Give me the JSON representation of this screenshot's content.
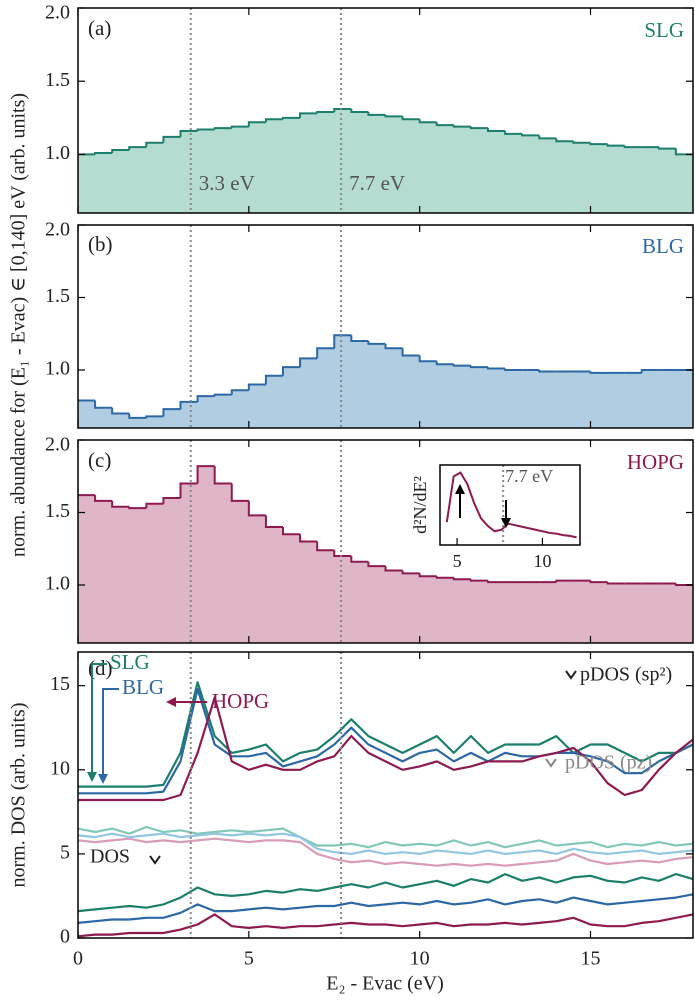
{
  "chart_data": [
    {
      "type": "histogram",
      "panel_label": "(a)",
      "name": "SLG",
      "color": "#1b7f6c",
      "fill": "#b5dcd1",
      "bins": [
        0,
        0.5,
        1,
        1.5,
        2,
        2.5,
        3,
        3.5,
        4,
        4.5,
        5,
        5.5,
        6,
        6.5,
        7,
        7.5,
        8,
        8.5,
        9,
        9.5,
        10,
        10.5,
        11,
        11.5,
        12,
        12.5,
        13,
        13.5,
        14,
        14.5,
        15,
        15.5,
        16,
        16.5,
        17,
        17.5,
        18
      ],
      "values": [
        1.0,
        1.01,
        1.03,
        1.05,
        1.08,
        1.12,
        1.16,
        1.17,
        1.18,
        1.19,
        1.22,
        1.24,
        1.25,
        1.28,
        1.29,
        1.31,
        1.29,
        1.27,
        1.26,
        1.24,
        1.22,
        1.2,
        1.19,
        1.18,
        1.16,
        1.14,
        1.13,
        1.11,
        1.09,
        1.08,
        1.07,
        1.06,
        1.05,
        1.05,
        1.04,
        1.0
      ],
      "xlim": [
        0,
        18
      ],
      "xticks": [
        0,
        5,
        10,
        15
      ],
      "ylim": [
        0.6,
        2.0
      ],
      "yticks": [
        {
          "value": 1,
          "label": "1.0"
        },
        {
          "value": 1.5,
          "label": "1.5"
        },
        {
          "value": 2,
          "label": "2.0"
        }
      ],
      "vlines": [
        {
          "value": 3.3,
          "label": "3.3 eV"
        },
        {
          "value": 7.7,
          "label": "7.7 eV"
        }
      ]
    },
    {
      "type": "histogram",
      "panel_label": "(b)",
      "name": "BLG",
      "color": "#2d68a6",
      "fill": "#b0cde2",
      "ylabel": "norm. abundance for (E₁ - Evac) ∈ [0,140] eV (arb. units)",
      "bins": [
        0,
        0.5,
        1,
        1.5,
        2,
        2.5,
        3,
        3.5,
        4,
        4.5,
        5,
        5.5,
        6,
        6.5,
        7,
        7.5,
        8,
        8.5,
        9,
        9.5,
        10,
        10.5,
        11,
        11.5,
        12,
        12.5,
        13,
        13.5,
        14,
        14.5,
        15,
        15.5,
        16,
        16.5,
        17,
        17.5,
        18
      ],
      "values": [
        0.79,
        0.74,
        0.7,
        0.67,
        0.68,
        0.73,
        0.78,
        0.82,
        0.83,
        0.86,
        0.9,
        0.96,
        1.02,
        1.08,
        1.15,
        1.24,
        1.2,
        1.18,
        1.15,
        1.1,
        1.06,
        1.04,
        1.03,
        1.02,
        1.01,
        1.0,
        1.0,
        0.99,
        0.99,
        0.99,
        0.98,
        0.98,
        0.98,
        1.0,
        1.0,
        1.0
      ],
      "xlim": [
        0,
        18
      ],
      "xticks": [
        0,
        5,
        10,
        15
      ],
      "ylim": [
        0.6,
        2.0
      ],
      "yticks": [
        {
          "value": 1,
          "label": "1.0"
        },
        {
          "value": 1.5,
          "label": "1.5"
        },
        {
          "value": 2,
          "label": "2.0"
        }
      ],
      "vlines": [
        3.3,
        7.7
      ]
    },
    {
      "type": "histogram",
      "panel_label": "(c)",
      "name": "HOPG",
      "color": "#8e1a50",
      "fill": "#dfb5c8",
      "bins": [
        0,
        0.5,
        1,
        1.5,
        2,
        2.5,
        3,
        3.5,
        4,
        4.5,
        5,
        5.5,
        6,
        6.5,
        7,
        7.5,
        8,
        8.5,
        9,
        9.5,
        10,
        10.5,
        11,
        11.5,
        12,
        12.5,
        13,
        13.5,
        14,
        14.5,
        15,
        15.5,
        16,
        16.5,
        17,
        17.5,
        18
      ],
      "values": [
        1.62,
        1.58,
        1.54,
        1.53,
        1.56,
        1.6,
        1.7,
        1.82,
        1.7,
        1.58,
        1.48,
        1.4,
        1.35,
        1.3,
        1.24,
        1.2,
        1.16,
        1.13,
        1.1,
        1.08,
        1.06,
        1.05,
        1.04,
        1.03,
        1.02,
        1.02,
        1.02,
        1.02,
        1.03,
        1.03,
        1.02,
        1.01,
        1.01,
        1.01,
        1.01,
        1.0
      ],
      "xlim": [
        0,
        18
      ],
      "xticks": [
        0,
        5,
        10,
        15
      ],
      "ylim": [
        0.6,
        2.0
      ],
      "yticks": [
        {
          "value": 1,
          "label": "1.0"
        },
        {
          "value": 1.5,
          "label": "1.5"
        },
        {
          "value": 2,
          "label": "2.0"
        }
      ],
      "vlines": [
        3.3,
        7.7
      ]
    },
    {
      "type": "inset",
      "ylabel": "d²N/dE²",
      "color": "#8e1a50",
      "x": [
        4.4,
        4.8,
        5.2,
        5.6,
        6.0,
        6.4,
        6.8,
        7.2,
        7.6,
        8.0,
        8.4,
        8.8,
        9.2,
        9.6,
        10.0,
        10.4,
        10.8,
        11.2,
        11.6,
        12.0
      ],
      "values": [
        0.3,
        0.9,
        0.95,
        0.8,
        0.55,
        0.35,
        0.25,
        0.18,
        0.2,
        0.28,
        0.26,
        0.24,
        0.22,
        0.2,
        0.18,
        0.16,
        0.15,
        0.13,
        0.12,
        0.1
      ],
      "xlim": [
        4,
        12.2
      ],
      "xticks": [
        5,
        10
      ],
      "ylim": [
        0,
        1.05
      ],
      "vlines": [
        {
          "value": 7.7,
          "label": "7.7 eV"
        }
      ]
    },
    {
      "type": "line",
      "panel_label": "(d)",
      "xlabel": "E₂ - Evac (eV)",
      "ylabel": "norm. DOS (arb. units)",
      "curve_labels": {
        "sp2": "pDOS (sp²)",
        "pz": "pDOS (pz)",
        "dos": "DOS"
      },
      "xlim": [
        0,
        18
      ],
      "xticks": [
        0,
        5,
        10,
        15
      ],
      "ylim": [
        0,
        17
      ],
      "yticks": [
        0,
        5,
        10,
        15
      ],
      "vlines": [
        3.3,
        7.7
      ],
      "x": [
        0,
        0.5,
        1,
        1.5,
        2,
        2.5,
        3,
        3.5,
        4,
        4.5,
        5,
        5.5,
        6,
        6.5,
        7,
        7.5,
        8,
        8.5,
        9,
        9.5,
        10,
        10.5,
        11,
        11.5,
        12,
        12.5,
        13,
        13.5,
        14,
        14.5,
        15,
        15.5,
        16,
        16.5,
        17,
        17.5,
        18
      ],
      "series": [
        {
          "name": "SLG",
          "color": "#1b7f6c",
          "light_color": "#82c7b7",
          "sp2": [
            9,
            9,
            9,
            9,
            9,
            9.1,
            11,
            15.2,
            12,
            11,
            11.2,
            11.5,
            10.5,
            11,
            11.2,
            12,
            13,
            12,
            11.5,
            11,
            11.5,
            12,
            11,
            12,
            11,
            11.5,
            11.5,
            11.5,
            12,
            11,
            11.5,
            11.5,
            11,
            10.5,
            11,
            11,
            11.5
          ],
          "pz": [
            6.5,
            6.3,
            6.5,
            6.2,
            6.6,
            6.3,
            6.4,
            6.2,
            6.3,
            6.4,
            6.3,
            6.4,
            6.5,
            6.0,
            5.5,
            5.5,
            5.6,
            5.4,
            5.7,
            5.5,
            5.6,
            5.5,
            5.8,
            5.5,
            5.7,
            5.4,
            5.6,
            5.8,
            5.5,
            5.6,
            5.7,
            5.4,
            5.6,
            5.5,
            5.7,
            5.5,
            5.6
          ],
          "dos": [
            1.6,
            1.7,
            1.8,
            1.9,
            1.8,
            2.0,
            2.4,
            3.0,
            2.6,
            2.5,
            2.6,
            2.8,
            2.7,
            2.9,
            2.8,
            3.0,
            3.2,
            3.0,
            3.3,
            3.0,
            3.2,
            3.4,
            3.1,
            3.5,
            3.3,
            3.8,
            3.4,
            3.6,
            3.3,
            3.6,
            3.7,
            3.4,
            3.3,
            3.6,
            3.4,
            3.8,
            3.5
          ]
        },
        {
          "name": "BLG",
          "color": "#2d68a6",
          "light_color": "#92c6e2",
          "sp2": [
            8.6,
            8.6,
            8.6,
            8.6,
            8.6,
            8.7,
            10.5,
            14.8,
            11.5,
            10.8,
            10.8,
            11,
            10.2,
            10.5,
            10.8,
            11.5,
            12.5,
            11.5,
            11,
            10.5,
            11,
            11.2,
            10.5,
            11,
            10.5,
            11,
            10.8,
            10.8,
            11,
            11,
            10.8,
            10.5,
            9.8,
            9.8,
            10.5,
            11,
            11.5
          ],
          "pz": [
            6.1,
            6.0,
            6.2,
            6.0,
            6.1,
            6.2,
            6.0,
            6.1,
            6.2,
            6.1,
            6.2,
            6.1,
            6.2,
            6.0,
            5.3,
            5.1,
            5.0,
            5.2,
            5.0,
            5.1,
            5.0,
            5.2,
            5.1,
            5.0,
            5.2,
            5.0,
            5.1,
            5.2,
            5.0,
            5.3,
            5.1,
            5.0,
            5.1,
            5.2,
            5.0,
            5.1,
            5.2
          ],
          "dos": [
            0.9,
            1.0,
            1.1,
            1.1,
            1.2,
            1.2,
            1.5,
            2.0,
            1.6,
            1.6,
            1.7,
            1.8,
            1.7,
            1.8,
            1.9,
            1.9,
            2.1,
            1.9,
            2.0,
            2.1,
            2.0,
            2.2,
            2.0,
            2.1,
            2.3,
            2.0,
            2.2,
            2.3,
            2.1,
            2.4,
            2.2,
            2.0,
            2.1,
            2.2,
            2.3,
            2.4,
            2.6
          ]
        },
        {
          "name": "HOPG",
          "color": "#8e1a50",
          "light_color": "#d89bb8",
          "sp2": [
            8.2,
            8.2,
            8.2,
            8.2,
            8.2,
            8.2,
            8.5,
            11,
            14.3,
            10.5,
            10,
            10.3,
            10,
            10,
            10.5,
            10.8,
            12,
            11,
            10.5,
            10,
            10.2,
            10.5,
            10,
            10.2,
            10.5,
            10.5,
            10.5,
            10.8,
            11,
            11.3,
            10.5,
            9.2,
            8.5,
            8.8,
            10,
            11,
            11.8
          ],
          "pz": [
            5.8,
            5.7,
            5.8,
            5.9,
            5.7,
            5.8,
            5.7,
            5.8,
            5.9,
            5.8,
            5.7,
            5.8,
            5.8,
            5.7,
            5.0,
            4.7,
            4.5,
            4.6,
            4.4,
            4.5,
            4.4,
            4.3,
            4.4,
            4.3,
            4.4,
            4.3,
            4.4,
            4.5,
            4.6,
            5.0,
            4.6,
            4.4,
            4.5,
            4.6,
            4.5,
            4.7,
            4.8
          ],
          "dos": [
            0.1,
            0.2,
            0.2,
            0.3,
            0.3,
            0.3,
            0.5,
            0.8,
            1.4,
            0.7,
            0.6,
            0.7,
            0.6,
            0.7,
            0.7,
            0.8,
            0.9,
            0.8,
            0.8,
            0.7,
            0.8,
            0.9,
            0.7,
            0.8,
            0.8,
            0.9,
            0.8,
            0.9,
            1.0,
            1.2,
            0.8,
            0.7,
            0.7,
            0.9,
            1.0,
            1.2,
            1.4
          ]
        }
      ]
    }
  ]
}
